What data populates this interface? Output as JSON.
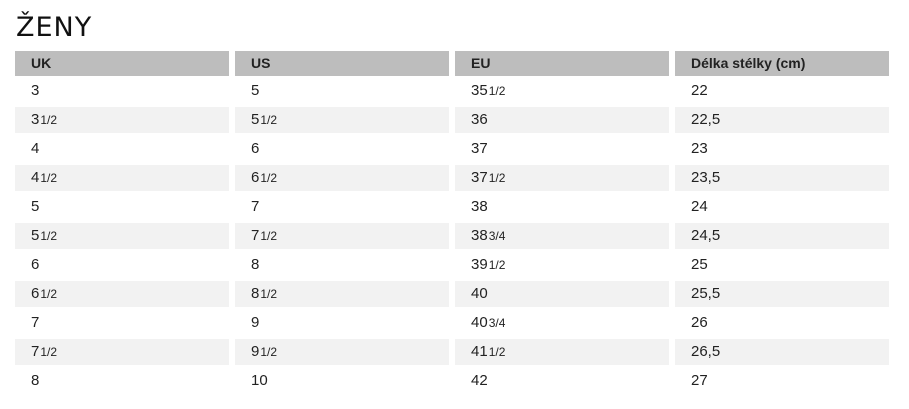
{
  "title": "ŽENY",
  "table": {
    "headers": [
      "UK",
      "US",
      "EU",
      "Délka stélky (cm)"
    ],
    "rows": [
      [
        {
          "v": "3",
          "f": ""
        },
        {
          "v": "5",
          "f": ""
        },
        {
          "v": "35",
          "f": "1/2"
        },
        {
          "v": "22",
          "f": ""
        }
      ],
      [
        {
          "v": "3",
          "f": "1/2"
        },
        {
          "v": "5",
          "f": "1/2"
        },
        {
          "v": "36",
          "f": ""
        },
        {
          "v": "22,5",
          "f": ""
        }
      ],
      [
        {
          "v": "4",
          "f": ""
        },
        {
          "v": "6",
          "f": ""
        },
        {
          "v": "37",
          "f": ""
        },
        {
          "v": "23",
          "f": ""
        }
      ],
      [
        {
          "v": "4",
          "f": "1/2"
        },
        {
          "v": "6",
          "f": "1/2"
        },
        {
          "v": "37",
          "f": "1/2"
        },
        {
          "v": "23,5",
          "f": ""
        }
      ],
      [
        {
          "v": "5",
          "f": ""
        },
        {
          "v": "7",
          "f": ""
        },
        {
          "v": "38",
          "f": ""
        },
        {
          "v": "24",
          "f": ""
        }
      ],
      [
        {
          "v": "5",
          "f": "1/2"
        },
        {
          "v": "7",
          "f": "1/2"
        },
        {
          "v": "38",
          "f": "3/4"
        },
        {
          "v": "24,5",
          "f": ""
        }
      ],
      [
        {
          "v": "6",
          "f": ""
        },
        {
          "v": "8",
          "f": ""
        },
        {
          "v": "39",
          "f": "1/2"
        },
        {
          "v": "25",
          "f": ""
        }
      ],
      [
        {
          "v": "6",
          "f": "1/2"
        },
        {
          "v": "8",
          "f": "1/2"
        },
        {
          "v": "40",
          "f": ""
        },
        {
          "v": "25,5",
          "f": ""
        }
      ],
      [
        {
          "v": "7",
          "f": ""
        },
        {
          "v": "9",
          "f": ""
        },
        {
          "v": "40",
          "f": "3/4"
        },
        {
          "v": "26",
          "f": ""
        }
      ],
      [
        {
          "v": "7",
          "f": "1/2"
        },
        {
          "v": "9",
          "f": "1/2"
        },
        {
          "v": "41",
          "f": "1/2"
        },
        {
          "v": "26,5",
          "f": ""
        }
      ],
      [
        {
          "v": "8",
          "f": ""
        },
        {
          "v": "10",
          "f": ""
        },
        {
          "v": "42",
          "f": ""
        },
        {
          "v": "27",
          "f": ""
        }
      ]
    ]
  },
  "colors": {
    "header_bg": "#bdbdbd",
    "alt_row_bg": "#f2f2f2"
  }
}
